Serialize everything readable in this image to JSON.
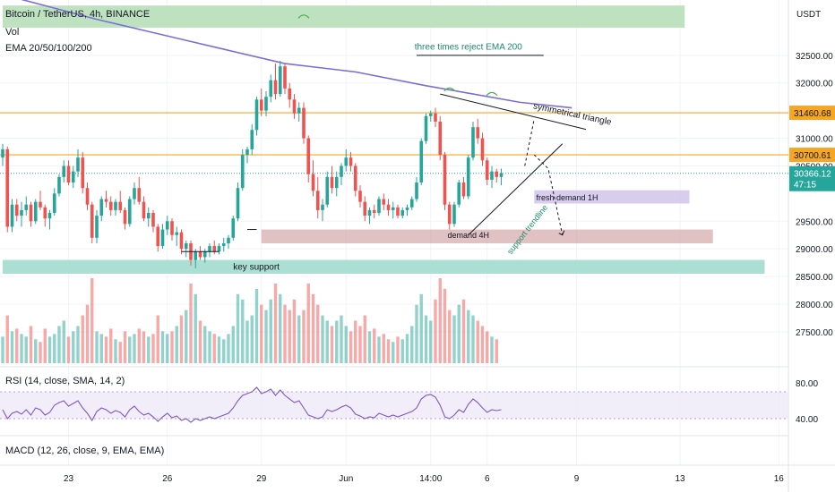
{
  "header": {
    "symbol_line": "Bitcoin / TetherUS, 4h, BINANCE",
    "vol_label": "Vol",
    "ema_label": "EMA 20/50/100/200"
  },
  "rsi": {
    "label": "RSI (14, close, SMA, 14, 2)"
  },
  "macd": {
    "label": "MACD (12, 26, close, 9, EMA, EMA)"
  },
  "colors": {
    "up": "#26a69a",
    "down": "#ef5350",
    "ema200": "#7b6fd6",
    "level": "#f5a623",
    "rsi_line": "#7e57c2",
    "rsi_band": "#ede7f6"
  },
  "chart_data": {
    "type": "candlestick",
    "currency": "USDT",
    "ylim": [
      26900,
      33500
    ],
    "y_ticks": [
      32500,
      32000,
      31000,
      30500,
      29500,
      29000,
      28500,
      28000,
      27500
    ],
    "y_tick_labels": [
      "32500.00",
      "32000.00",
      "31000.00",
      "30500.00",
      "29500.00",
      "29000.00",
      "28500.00",
      "28000.00",
      "27500.00"
    ],
    "x_tick_labels": [
      "23",
      "26",
      "29",
      "Jun",
      "14:00",
      "6",
      "9",
      "13",
      "16"
    ],
    "x_tick_bars": [
      14,
      35,
      55,
      73,
      91,
      103,
      122,
      144,
      165
    ],
    "levels": [
      {
        "price": 31460.68,
        "label": "31460.68"
      },
      {
        "price": 30700.61,
        "label": "30700.61"
      }
    ],
    "last_price": {
      "price": 30366.12,
      "label": "30366.12",
      "countdown": "47:15"
    },
    "zones": [
      {
        "name": "resistance-zone",
        "from_bar": 0,
        "to_bar": 145,
        "low": 33000,
        "high": 33400
      },
      {
        "name": "key-support-zone",
        "from_bar": 0,
        "to_bar": 162,
        "low": 28550,
        "high": 28800
      },
      {
        "name": "demand-4h-zone",
        "from_bar": 55,
        "to_bar": 151,
        "low": 29100,
        "high": 29350
      },
      {
        "name": "fresh-demand-zone",
        "from_bar": 113,
        "to_bar": 146,
        "low": 29820,
        "high": 30060
      }
    ],
    "annotations": [
      {
        "name": "three-times-reject",
        "text": "three times reject EMA 200",
        "bar": 99,
        "price": 32600
      },
      {
        "name": "symmetrical-triangle",
        "text": "symmetrical triangle",
        "bar": 121,
        "price": 31390
      },
      {
        "name": "fresh-demand-1h",
        "text": "fresh demand 1H",
        "bar": 120,
        "price": 29880
      },
      {
        "name": "demand-4h",
        "text": "demand 4H",
        "bar": 99,
        "price": 29200
      },
      {
        "name": "key-support",
        "text": "key support",
        "bar": 49,
        "price": 28620
      },
      {
        "name": "support-trendline",
        "text": "support trendline",
        "bar": 112,
        "price": 29320
      }
    ],
    "ohlc": [
      [
        30650,
        30900,
        30500,
        30800
      ],
      [
        30800,
        30850,
        29300,
        29400
      ],
      [
        29400,
        29900,
        29300,
        29800
      ],
      [
        29800,
        29900,
        29500,
        29600
      ],
      [
        29600,
        29850,
        29400,
        29700
      ],
      [
        29700,
        29950,
        29600,
        29800
      ],
      [
        29800,
        29850,
        29400,
        29500
      ],
      [
        29500,
        29900,
        29450,
        29850
      ],
      [
        29850,
        30050,
        29700,
        29750
      ],
      [
        29750,
        29800,
        29400,
        29550
      ],
      [
        29550,
        29700,
        29350,
        29650
      ],
      [
        29650,
        30100,
        29600,
        30000
      ],
      [
        30000,
        30350,
        29950,
        30300
      ],
      [
        30300,
        30600,
        30200,
        30500
      ],
      [
        30500,
        30600,
        30150,
        30200
      ],
      [
        30200,
        30500,
        30100,
        30400
      ],
      [
        30400,
        30800,
        30300,
        30650
      ],
      [
        30650,
        30750,
        30000,
        30100
      ],
      [
        30100,
        30200,
        29700,
        29800
      ],
      [
        29800,
        29850,
        29100,
        29200
      ],
      [
        29200,
        29700,
        29100,
        29600
      ],
      [
        29600,
        29950,
        29500,
        29900
      ],
      [
        29900,
        30050,
        29750,
        29850
      ],
      [
        29850,
        29950,
        29600,
        29700
      ],
      [
        29700,
        29900,
        29600,
        29850
      ],
      [
        29850,
        30050,
        29650,
        29700
      ],
      [
        29700,
        29750,
        29350,
        29450
      ],
      [
        29450,
        29950,
        29400,
        29900
      ],
      [
        29900,
        30200,
        29800,
        30100
      ],
      [
        30100,
        30300,
        29800,
        29850
      ],
      [
        29850,
        29950,
        29500,
        29550
      ],
      [
        29550,
        29750,
        29400,
        29650
      ],
      [
        29650,
        29700,
        29300,
        29400
      ],
      [
        29400,
        29450,
        28950,
        29050
      ],
      [
        29050,
        29450,
        29000,
        29350
      ],
      [
        29350,
        29600,
        29250,
        29500
      ],
      [
        29500,
        29550,
        29150,
        29250
      ],
      [
        29250,
        29400,
        29050,
        29300
      ],
      [
        29300,
        29350,
        28900,
        29000
      ],
      [
        29000,
        29150,
        28850,
        29100
      ],
      [
        29100,
        29150,
        28700,
        28800
      ],
      [
        28800,
        29000,
        28650,
        28950
      ],
      [
        28950,
        29050,
        28800,
        28850
      ],
      [
        28850,
        29000,
        28750,
        28950
      ],
      [
        28950,
        29100,
        28850,
        29050
      ],
      [
        29050,
        29150,
        28900,
        28950
      ],
      [
        28950,
        29100,
        28900,
        29050
      ],
      [
        29050,
        29200,
        28950,
        29100
      ],
      [
        29100,
        29250,
        29000,
        29200
      ],
      [
        29200,
        29600,
        29150,
        29550
      ],
      [
        29550,
        30200,
        29500,
        30100
      ],
      [
        30100,
        30800,
        30050,
        30700
      ],
      [
        30700,
        30850,
        30550,
        30800
      ],
      [
        30800,
        31250,
        30700,
        31150
      ],
      [
        31150,
        31750,
        31050,
        31700
      ],
      [
        31700,
        31900,
        31400,
        31500
      ],
      [
        31500,
        31850,
        31400,
        31750
      ],
      [
        31750,
        32150,
        31650,
        32050
      ],
      [
        32050,
        32350,
        31700,
        31800
      ],
      [
        31800,
        32400,
        31750,
        32300
      ],
      [
        32300,
        32350,
        31800,
        31900
      ],
      [
        31900,
        32000,
        31550,
        31700
      ],
      [
        31700,
        31800,
        31350,
        31450
      ],
      [
        31450,
        31650,
        31300,
        31550
      ],
      [
        31550,
        31650,
        30900,
        31000
      ],
      [
        31000,
        31050,
        30200,
        30350
      ],
      [
        30350,
        30600,
        29950,
        30050
      ],
      [
        30050,
        30300,
        29550,
        29700
      ],
      [
        29700,
        29900,
        29500,
        29800
      ],
      [
        29800,
        30400,
        29750,
        30300
      ],
      [
        30300,
        30500,
        30000,
        30100
      ],
      [
        30100,
        30400,
        29950,
        30300
      ],
      [
        30300,
        30550,
        30150,
        30500
      ],
      [
        30500,
        30800,
        30400,
        30650
      ],
      [
        30650,
        30750,
        30400,
        30500
      ],
      [
        30500,
        30550,
        29950,
        30050
      ],
      [
        30050,
        30150,
        29750,
        29850
      ],
      [
        29850,
        29950,
        29500,
        29600
      ],
      [
        29600,
        29750,
        29450,
        29700
      ],
      [
        29700,
        29800,
        29550,
        29650
      ],
      [
        29650,
        29950,
        29600,
        29900
      ],
      [
        29900,
        30000,
        29700,
        29800
      ],
      [
        29800,
        29900,
        29600,
        29700
      ],
      [
        29700,
        29850,
        29550,
        29750
      ],
      [
        29750,
        29800,
        29550,
        29600
      ],
      [
        29600,
        29750,
        29550,
        29700
      ],
      [
        29700,
        29800,
        29600,
        29750
      ],
      [
        29750,
        29950,
        29700,
        29900
      ],
      [
        29900,
        30300,
        29850,
        30200
      ],
      [
        30200,
        31000,
        30150,
        30950
      ],
      [
        30950,
        31450,
        30900,
        31400
      ],
      [
        31400,
        31500,
        31300,
        31450
      ],
      [
        31450,
        31550,
        31200,
        31300
      ],
      [
        31300,
        31400,
        30600,
        30700
      ],
      [
        30700,
        30750,
        29700,
        29800
      ],
      [
        29800,
        29850,
        29350,
        29450
      ],
      [
        29450,
        29850,
        29400,
        29800
      ],
      [
        29800,
        30250,
        29750,
        30200
      ],
      [
        30200,
        30300,
        29900,
        29950
      ],
      [
        29950,
        30700,
        29900,
        30650
      ],
      [
        30650,
        31300,
        30600,
        31200
      ],
      [
        31200,
        31350,
        30900,
        31000
      ],
      [
        31000,
        31100,
        30500,
        30600
      ],
      [
        30600,
        30650,
        30150,
        30250
      ],
      [
        30250,
        30500,
        30100,
        30400
      ],
      [
        30400,
        30450,
        30200,
        30300
      ],
      [
        30300,
        30450,
        30150,
        30366
      ]
    ],
    "volume": [
      500,
      900,
      600,
      650,
      550,
      500,
      700,
      450,
      400,
      650,
      500,
      550,
      700,
      800,
      500,
      600,
      700,
      900,
      1100,
      1600,
      600,
      550,
      500,
      650,
      450,
      400,
      600,
      500,
      550,
      650,
      600,
      500,
      550,
      900,
      600,
      550,
      600,
      700,
      900,
      1000,
      1500,
      1300,
      800,
      700,
      600,
      550,
      500,
      450,
      550,
      700,
      1300,
      1200,
      800,
      900,
      1400,
      1100,
      1000,
      1200,
      1500,
      1300,
      1100,
      1000,
      1200,
      900,
      1000,
      1500,
      1300,
      1100,
      900,
      800,
      700,
      800,
      900,
      700,
      600,
      800,
      700,
      900,
      600,
      650,
      500,
      550,
      450,
      400,
      500,
      450,
      550,
      700,
      1100,
      1300,
      900,
      800,
      1200,
      1600,
      1400,
      1000,
      900,
      1100,
      1200,
      1000,
      900,
      800,
      700,
      600,
      500,
      450
    ],
    "ema200": [
      [
        0,
        33600
      ],
      [
        20,
        33150
      ],
      [
        40,
        32750
      ],
      [
        60,
        32350
      ],
      [
        75,
        32200
      ],
      [
        90,
        31950
      ],
      [
        100,
        31800
      ],
      [
        110,
        31650
      ],
      [
        121,
        31550
      ]
    ],
    "rsi": {
      "ylim": [
        30,
        90
      ],
      "y_ticks": [
        80,
        40
      ],
      "y_tick_labels": [
        "80.00",
        "40.00"
      ],
      "band": [
        40,
        70
      ],
      "values": [
        50,
        40,
        46,
        48,
        45,
        50,
        44,
        52,
        50,
        44,
        47,
        55,
        58,
        60,
        54,
        57,
        60,
        52,
        46,
        38,
        48,
        52,
        50,
        46,
        49,
        47,
        42,
        50,
        54,
        48,
        44,
        46,
        42,
        37,
        42,
        46,
        41,
        43,
        38,
        40,
        36,
        40,
        38,
        40,
        42,
        40,
        42,
        44,
        46,
        52,
        60,
        66,
        68,
        70,
        75,
        68,
        70,
        73,
        66,
        72,
        66,
        62,
        58,
        60,
        52,
        44,
        42,
        40,
        42,
        50,
        48,
        50,
        53,
        55,
        52,
        45,
        43,
        40,
        42,
        41,
        46,
        44,
        42,
        44,
        42,
        44,
        46,
        48,
        52,
        62,
        66,
        67,
        64,
        55,
        42,
        40,
        44,
        50,
        47,
        56,
        62,
        58,
        52,
        47,
        50,
        49,
        50
      ]
    }
  }
}
